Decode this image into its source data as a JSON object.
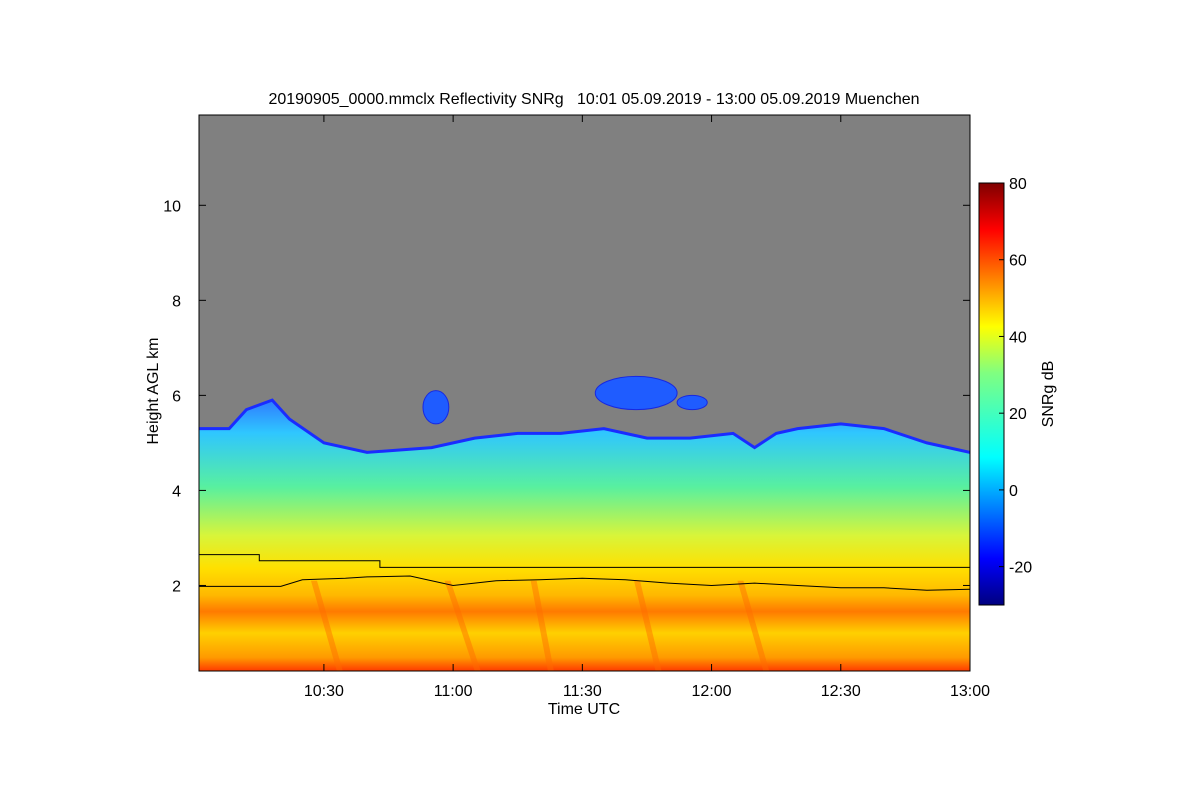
{
  "chart_data": {
    "type": "heatmap",
    "title": "20190905_0000.mmclx Reflectivity SNRg   10:01 05.09.2019 - 13:00 05.09.2019 Muenchen",
    "xlabel": "Time UTC",
    "ylabel": "Height AGL km",
    "x_range": [
      "10:01",
      "13:00"
    ],
    "x_ticks": [
      "10:30",
      "11:00",
      "11:30",
      "12:00",
      "12:30",
      "13:00"
    ],
    "y_range": [
      0.2,
      11.9
    ],
    "y_ticks": [
      "2",
      "4",
      "6",
      "8",
      "10"
    ],
    "background_color": "#808080",
    "colorbar": {
      "label": "SNRg dB",
      "range": [
        -30,
        80
      ],
      "ticks": [
        "-20",
        "0",
        "20",
        "40",
        "60",
        "80"
      ],
      "colormap": "jet"
    },
    "cloud_top_km": [
      [
        "10:01",
        5.3
      ],
      [
        "10:08",
        5.3
      ],
      [
        "10:12",
        5.7
      ],
      [
        "10:18",
        5.9
      ],
      [
        "10:22",
        5.5
      ],
      [
        "10:30",
        5.0
      ],
      [
        "10:40",
        4.8
      ],
      [
        "10:55",
        4.9
      ],
      [
        "11:05",
        5.1
      ],
      [
        "11:15",
        5.2
      ],
      [
        "11:25",
        5.2
      ],
      [
        "11:35",
        5.3
      ],
      [
        "11:45",
        5.1
      ],
      [
        "11:55",
        5.1
      ],
      [
        "12:05",
        5.2
      ],
      [
        "12:10",
        4.9
      ],
      [
        "12:15",
        5.2
      ],
      [
        "12:20",
        5.3
      ],
      [
        "12:30",
        5.4
      ],
      [
        "12:40",
        5.3
      ],
      [
        "12:50",
        5.0
      ],
      [
        "13:00",
        4.8
      ]
    ],
    "elevated_cloud_patches": [
      {
        "x_start": "10:53",
        "x_end": "10:59",
        "y_bottom_km": 5.4,
        "y_top_km": 6.1
      },
      {
        "x_start": "11:33",
        "x_end": "11:52",
        "y_bottom_km": 5.7,
        "y_top_km": 6.4
      },
      {
        "x_start": "11:52",
        "x_end": "11:59",
        "y_bottom_km": 5.7,
        "y_top_km": 6.0
      }
    ],
    "series": [
      {
        "x": [
          "10:01",
          "10:15",
          "10:15",
          "10:43",
          "10:43",
          "13:00"
        ],
        "y": [
          2.65,
          2.65,
          2.52,
          2.52,
          2.38,
          2.38
        ]
      },
      {
        "x": [
          "10:01",
          "10:20",
          "10:25",
          "10:35",
          "10:40",
          "10:50",
          "11:00",
          "11:10",
          "11:20",
          "11:30",
          "11:40",
          "11:50",
          "12:00",
          "12:10",
          "12:20",
          "12:30",
          "12:40",
          "12:50",
          "13:00"
        ],
        "y": [
          1.98,
          1.98,
          2.12,
          2.15,
          2.18,
          2.2,
          2.0,
          2.1,
          2.12,
          2.15,
          2.12,
          2.05,
          2.0,
          2.05,
          2.0,
          1.95,
          1.95,
          1.9,
          1.92
        ]
      }
    ]
  }
}
